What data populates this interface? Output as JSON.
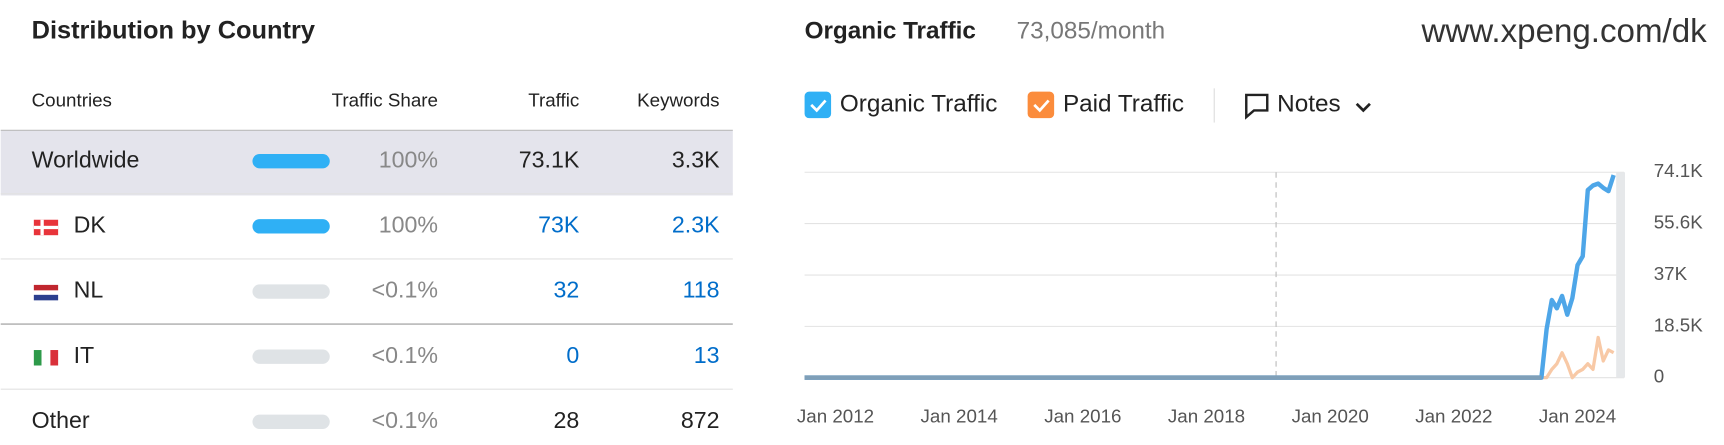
{
  "site": "www.xpeng.com/dk",
  "table": {
    "title": "Distribution by Country",
    "columns": [
      "Countries",
      "Traffic Share",
      "Traffic",
      "Keywords"
    ],
    "rows": [
      {
        "country": "Worldwide",
        "share": "100%",
        "traffic": "73.1K",
        "keywords": "3.3K",
        "bar_color": "#2fb0f5",
        "text_color": "#222222"
      },
      {
        "country": "DK",
        "share": "100%",
        "traffic": "73K",
        "keywords": "2.3K",
        "bar_color": "#2fb0f5",
        "text_color": "#006dca"
      },
      {
        "country": "NL",
        "share": "<0.1%",
        "traffic": "32",
        "keywords": "118",
        "bar_color": "#dfe3e6",
        "text_color": "#006dca"
      },
      {
        "country": "IT",
        "share": "<0.1%",
        "traffic": "0",
        "keywords": "13",
        "bar_color": "#dfe3e6",
        "text_color": "#006dca"
      },
      {
        "country": "Other",
        "share": "<0.1%",
        "traffic": "28",
        "keywords": "872",
        "bar_color": "#dfe3e6",
        "text_color": "#222222"
      }
    ]
  },
  "notes": "Notes",
  "chart_data": {
    "type": "line",
    "title": "Organic Traffic",
    "subtitle": "73,085/month",
    "x": [
      "2011-07",
      "2023-06",
      "2023-07",
      "2023-08",
      "2023-09",
      "2023-10",
      "2023-11",
      "2023-12",
      "2024-01",
      "2024-02",
      "2024-03",
      "2024-04",
      "2024-05",
      "2024-06",
      "2024-07",
      "2024-08"
    ],
    "series": [
      {
        "name": "Organic Traffic",
        "color": "#4ea6e8",
        "values": [
          0,
          0,
          17500,
          28000,
          25000,
          29500,
          22700,
          28700,
          40600,
          43800,
          67700,
          69300,
          70000,
          68500,
          67300,
          73085
        ]
      },
      {
        "name": "Paid Traffic",
        "color": "#f8c9a6",
        "values": [
          0,
          0,
          0,
          3000,
          5000,
          9000,
          5000,
          0,
          2000,
          3000,
          5000,
          3000,
          14500,
          6000,
          10000,
          9000
        ]
      }
    ],
    "xlim": [
      "2011-07",
      "2024-10"
    ],
    "xticks": [
      {
        "value": "2012-01",
        "label": "Jan 2012"
      },
      {
        "value": "2014-01",
        "label": "Jan 2014"
      },
      {
        "value": "2016-01",
        "label": "Jan 2016"
      },
      {
        "value": "2018-01",
        "label": "Jan 2018"
      },
      {
        "value": "2020-01",
        "label": "Jan 2020"
      },
      {
        "value": "2022-01",
        "label": "Jan 2022"
      },
      {
        "value": "2024-01",
        "label": "Jan 2024"
      }
    ],
    "ylim": [
      0,
      74100
    ],
    "yticks": [
      0,
      {
        "value": 18500,
        "label": "18.5K"
      },
      {
        "value": 37000,
        "label": "37K"
      },
      {
        "value": 55600,
        "label": "55.6K"
      },
      {
        "value": 74100,
        "label": "74.1K"
      }
    ],
    "grid": true
  }
}
